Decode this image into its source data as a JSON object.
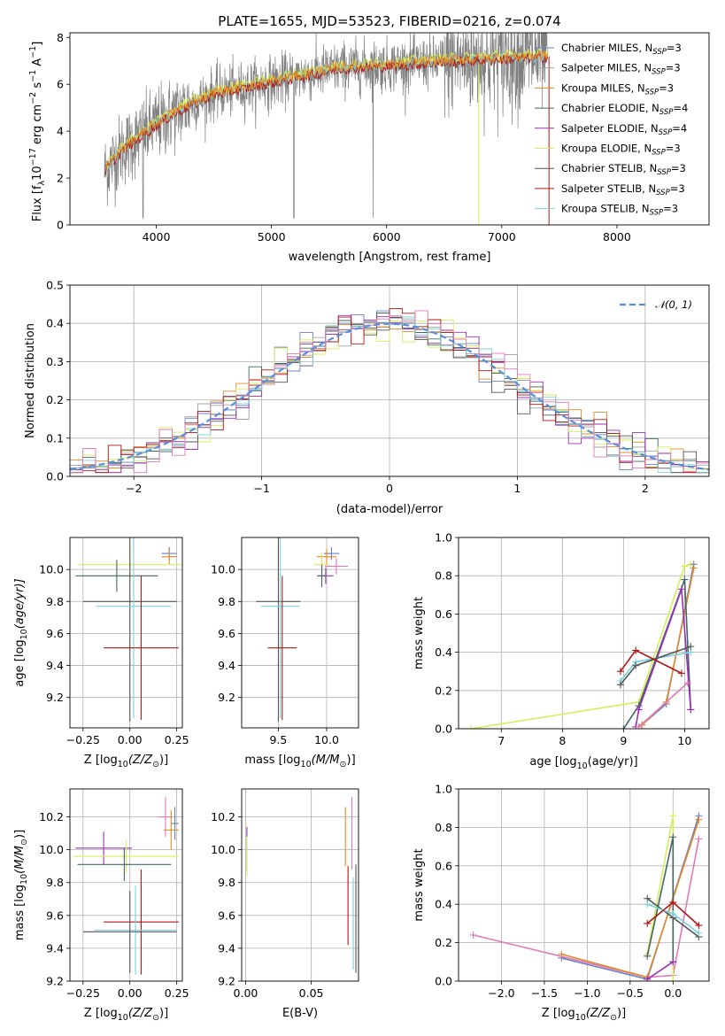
{
  "figure": {
    "title": "PLATE=1655, MJD=53523, FIBERID=0216, z=0.074"
  },
  "colors": {
    "Chabrier MILES": "#6a7fc6",
    "Salpeter MILES": "#a0a0a0",
    "Kroupa MILES": "#e08a2a",
    "Chabrier ELODIE": "#446666",
    "Salpeter ELODIE": "#9b30b5",
    "Kroupa ELODIE": "#d6ee58",
    "Chabrier STELIB": "#555555",
    "Salpeter STELIB": "#b01515",
    "Kroupa STELIB": "#7ad3dd",
    "extra_pink": "#e07ab8",
    "gaussian": "#5b8ddb",
    "data_grey": "#808080"
  },
  "chart_data": [
    {
      "id": "spectrum",
      "type": "line",
      "xlabel": "wavelength [Angstrom, rest frame]",
      "ylabel_main": "Flux [f",
      "ylabel_sub": "λ",
      "ylabel_rest": "10",
      "ylabel_exp": "−17",
      "ylabel_units": " erg cm",
      "ylabel_exp2": "−2",
      "ylabel_units2": " s",
      "ylabel_exp3": "−1",
      "ylabel_units3": " A",
      "ylabel_exp4": "−1",
      "ylabel_end": "]",
      "xlim": [
        3250,
        8800
      ],
      "ylim": [
        0,
        8.2
      ],
      "xticks": [
        "4000",
        "5000",
        "6000",
        "7000",
        "8000"
      ],
      "yticks": [
        "0",
        "2",
        "4",
        "6",
        "8"
      ],
      "grid": false,
      "legend_placement": "right",
      "legend": [
        {
          "label": "Chabrier MILES, N",
          "sub": "SSP",
          "tail": "=3"
        },
        {
          "label": "Salpeter MILES, N",
          "sub": "SSP",
          "tail": "=3"
        },
        {
          "label": "Kroupa MILES, N",
          "sub": "SSP",
          "tail": "=3"
        },
        {
          "label": "Chabrier ELODIE, N",
          "sub": "SSP",
          "tail": "=4"
        },
        {
          "label": "Salpeter ELODIE, N",
          "sub": "SSP",
          "tail": "=4"
        },
        {
          "label": "Kroupa ELODIE, N",
          "sub": "SSP",
          "tail": "=3"
        },
        {
          "label": "Chabrier STELIB, N",
          "sub": "SSP",
          "tail": "=3"
        },
        {
          "label": "Salpeter STELIB, N",
          "sub": "SSP",
          "tail": "=3"
        },
        {
          "label": "Kroupa STELIB, N",
          "sub": "SSP",
          "tail": "=3"
        }
      ],
      "continuum": {
        "x": [
          3550,
          3700,
          3900,
          4000,
          4200,
          4500,
          4800,
          5000,
          5300,
          5600,
          6000,
          6300,
          6600,
          7000,
          7400
        ],
        "y": [
          2.3,
          3.2,
          3.9,
          4.3,
          4.9,
          5.6,
          5.9,
          6.1,
          6.4,
          6.7,
          6.8,
          6.9,
          7.0,
          7.1,
          7.2
        ]
      }
    },
    {
      "id": "residuals",
      "type": "line",
      "xlabel": "(data-model)/error",
      "ylabel": "Normed distribution",
      "xlim": [
        -2.5,
        2.5
      ],
      "ylim": [
        0,
        0.5
      ],
      "xticks": [
        "−2",
        "−1",
        "0",
        "1",
        "2"
      ],
      "yticks": [
        "0.0",
        "0.1",
        "0.2",
        "0.3",
        "0.4",
        "0.5"
      ],
      "grid": true,
      "legend_placement": "top-right",
      "legend_label": "𝒩(0, 1)",
      "series_name": "N(0,1)"
    },
    {
      "id": "age-vs-Z",
      "type": "scatter",
      "xlabel": "Z [log",
      "xlabel_sub": "10",
      "xlabel_rest": "(Z/Z",
      "xlabel_sun": "⊙",
      "xlabel_end": ")]",
      "ylabel": "age  [log",
      "ylabel_sub": "10",
      "ylabel_rest": "(age/yr)]",
      "xlim": [
        -0.32,
        0.28
      ],
      "ylim": [
        9.01,
        10.2
      ],
      "xticks": [
        "−0.25",
        "0.00",
        "0.25"
      ],
      "yticks": [
        "9.2",
        "9.4",
        "9.6",
        "9.8",
        "10.0"
      ],
      "points": [
        {
          "c": "Chabrier MILES",
          "x": 0.21,
          "y": 10.1,
          "xe": 0.04,
          "ye": 0.04
        },
        {
          "c": "Kroupa MILES",
          "x": 0.21,
          "y": 10.08,
          "xe": 0.04,
          "ye": 0.05
        },
        {
          "c": "Kroupa ELODIE",
          "x": 0.0,
          "y": 10.03,
          "xe": 0.28,
          "ye": 0.1
        },
        {
          "c": "Chabrier ELODIE",
          "x": -0.07,
          "y": 9.96,
          "xe": 0.22,
          "ye": 0.1
        },
        {
          "c": "Chabrier STELIB",
          "x": 0.0,
          "y": 9.8,
          "xe": 0.25,
          "ye": 0.75
        },
        {
          "c": "Kroupa STELIB",
          "x": 0.02,
          "y": 9.77,
          "xe": 0.2,
          "ye": 0.7
        },
        {
          "c": "Salpeter STELIB",
          "x": 0.06,
          "y": 9.51,
          "xe": 0.2,
          "ye": 0.45
        }
      ]
    },
    {
      "id": "age-vs-mass",
      "type": "scatter",
      "xlabel": "mass [log",
      "xlabel_sub": "10",
      "xlabel_rest": "(M/M",
      "xlabel_sun": "⊙",
      "xlabel_end": ")]",
      "xlim": [
        9.12,
        10.33
      ],
      "ylim": [
        9.01,
        10.2
      ],
      "xticks": [
        "9.5",
        "10.0"
      ],
      "yticks": [
        "9.2",
        "9.4",
        "9.6",
        "9.8",
        "10.0"
      ],
      "points": [
        {
          "c": "Chabrier MILES",
          "x": 10.05,
          "y": 10.1,
          "xe": 0.08,
          "ye": 0.04
        },
        {
          "c": "Kroupa MILES",
          "x": 10.0,
          "y": 10.08,
          "xe": 0.1,
          "ye": 0.05
        },
        {
          "c": "extra_pink",
          "x": 10.1,
          "y": 10.02,
          "xe": 0.12,
          "ye": 0.05
        },
        {
          "c": "Kroupa ELODIE",
          "x": 9.95,
          "y": 10.03,
          "xe": 0.08,
          "ye": 0.08
        },
        {
          "c": "Salpeter ELODIE",
          "x": 9.99,
          "y": 9.96,
          "xe": 0.08,
          "ye": 0.05
        },
        {
          "c": "Chabrier ELODIE",
          "x": 9.95,
          "y": 9.96,
          "xe": 0.05,
          "ye": 0.07
        },
        {
          "c": "Chabrier STELIB",
          "x": 9.5,
          "y": 9.8,
          "xe": 0.23,
          "ye": 0.75
        },
        {
          "c": "Kroupa STELIB",
          "x": 9.52,
          "y": 9.77,
          "xe": 0.2,
          "ye": 0.7
        },
        {
          "c": "Salpeter STELIB",
          "x": 9.54,
          "y": 9.51,
          "xe": 0.15,
          "ye": 0.45
        }
      ]
    },
    {
      "id": "massweight-vs-age",
      "type": "line",
      "xlabel": "age  [log",
      "xlabel_sub": "10",
      "xlabel_rest": "(age/yr)]",
      "ylabel": "mass weight",
      "xlim": [
        6.3,
        10.4
      ],
      "ylim": [
        0,
        1.0
      ],
      "xticks": [
        "7",
        "8",
        "9",
        "10"
      ],
      "yticks": [
        "0.0",
        "0.2",
        "0.4",
        "0.6",
        "0.8",
        "1.0"
      ],
      "grid": true,
      "series": [
        {
          "c": "Kroupa ELODIE",
          "x": [
            6.5,
            9.25,
            10.0,
            10.1
          ],
          "y": [
            0.0,
            0.14,
            0.85,
            0.86
          ]
        },
        {
          "c": "Chabrier MILES",
          "x": [
            9.3,
            9.7,
            10.15
          ],
          "y": [
            0.02,
            0.13,
            0.86
          ]
        },
        {
          "c": "Kroupa MILES",
          "x": [
            9.3,
            9.7,
            10.15
          ],
          "y": [
            0.02,
            0.14,
            0.84
          ]
        },
        {
          "c": "Chabrier ELODIE",
          "x": [
            9.0,
            9.25,
            10.0,
            10.1
          ],
          "y": [
            0.0,
            0.12,
            0.78,
            0.1
          ]
        },
        {
          "c": "Salpeter ELODIE",
          "x": [
            9.2,
            9.25,
            9.95,
            10.1
          ],
          "y": [
            0.01,
            0.1,
            0.73,
            0.1
          ]
        },
        {
          "c": "Kroupa STELIB",
          "x": [
            8.95,
            9.2,
            10.1
          ],
          "y": [
            0.25,
            0.35,
            0.4
          ]
        },
        {
          "c": "Chabrier STELIB",
          "x": [
            8.95,
            9.2,
            10.1
          ],
          "y": [
            0.23,
            0.33,
            0.43
          ]
        },
        {
          "c": "Salpeter STELIB",
          "x": [
            8.95,
            9.2,
            9.95
          ],
          "y": [
            0.3,
            0.41,
            0.29
          ]
        },
        {
          "c": "extra_pink",
          "x": [
            9.25,
            10.05
          ],
          "y": [
            0.01,
            0.24
          ]
        }
      ]
    },
    {
      "id": "mass-vs-Z",
      "type": "scatter",
      "xlabel": "Z [log",
      "xlabel_sub": "10",
      "xlabel_rest": "(Z/Z",
      "xlabel_sun": "⊙",
      "xlabel_end": ")]",
      "ylabel": "mass [log",
      "ylabel_sub": "10",
      "ylabel_rest": "(M/M",
      "ylabel_sun": "⊙",
      "ylabel_end": ")]",
      "xlim": [
        -0.32,
        0.28
      ],
      "ylim": [
        9.2,
        10.37
      ],
      "xticks": [
        "−0.25",
        "0.00",
        "0.25"
      ],
      "yticks": [
        "9.2",
        "9.4",
        "9.6",
        "9.8",
        "10.0",
        "10.2"
      ],
      "points": [
        {
          "c": "Chabrier MILES",
          "x": 0.24,
          "y": 10.16,
          "xe": 0.02,
          "ye": 0.1
        },
        {
          "c": "extra_pink",
          "x": 0.19,
          "y": 10.2,
          "xe": 0.04,
          "ye": 0.12
        },
        {
          "c": "Kroupa MILES",
          "x": 0.22,
          "y": 10.12,
          "xe": 0.04,
          "ye": 0.12
        },
        {
          "c": "Salpeter ELODIE",
          "x": -0.14,
          "y": 10.01,
          "xe": 0.15,
          "ye": 0.1
        },
        {
          "c": "Kroupa ELODIE",
          "x": -0.02,
          "y": 9.96,
          "xe": 0.28,
          "ye": 0.1
        },
        {
          "c": "Chabrier ELODIE",
          "x": -0.03,
          "y": 9.91,
          "xe": 0.25,
          "ye": 0.1
        },
        {
          "c": "Salpeter STELIB",
          "x": 0.06,
          "y": 9.56,
          "xe": 0.2,
          "ye": 0.32
        },
        {
          "c": "Kroupa STELIB",
          "x": 0.03,
          "y": 9.51,
          "xe": 0.22,
          "ye": 0.27
        },
        {
          "c": "Chabrier STELIB",
          "x": 0.0,
          "y": 9.5,
          "xe": 0.25,
          "ye": 0.25
        }
      ]
    },
    {
      "id": "mass-vs-EBV",
      "type": "scatter",
      "xlabel": "E(B-V)",
      "xlim": [
        -0.003,
        0.086
      ],
      "ylim": [
        9.2,
        10.37
      ],
      "xticks": [
        "0.00",
        "0.05"
      ],
      "yticks": [
        "9.2",
        "9.4",
        "9.6",
        "9.8",
        "10.0",
        "10.2"
      ],
      "points": [
        {
          "c": "Salpeter ELODIE",
          "x": 0.001,
          "y": 10.01,
          "xe": 0,
          "ye": 0.13
        },
        {
          "c": "Kroupa ELODIE",
          "x": 0.001,
          "y": 9.96,
          "xe": 0,
          "ye": 0.12
        },
        {
          "c": "Kroupa MILES",
          "x": 0.076,
          "y": 10.08,
          "xe": 0,
          "ye": 0.18
        },
        {
          "c": "extra_pink",
          "x": 0.081,
          "y": 10.1,
          "xe": 0,
          "ye": 0.22
        },
        {
          "c": "Salpeter STELIB",
          "x": 0.078,
          "y": 9.66,
          "xe": 0,
          "ye": 0.24
        },
        {
          "c": "Kroupa STELIB",
          "x": 0.082,
          "y": 9.55,
          "xe": 0,
          "ye": 0.28
        },
        {
          "c": "Chabrier STELIB",
          "x": 0.084,
          "y": 9.58,
          "xe": 0,
          "ye": 0.33
        }
      ]
    },
    {
      "id": "massweight-vs-Z",
      "type": "line",
      "xlabel": "Z [log",
      "xlabel_sub": "10",
      "xlabel_rest": "(Z/Z",
      "xlabel_sun": "⊙",
      "xlabel_end": ")]",
      "ylabel": "mass weight",
      "xlim": [
        -2.5,
        0.42
      ],
      "ylim": [
        0,
        1.0
      ],
      "xticks": [
        "−2.0",
        "−1.5",
        "−1.0",
        "−0.5",
        "0.0"
      ],
      "yticks": [
        "0.0",
        "0.2",
        "0.4",
        "0.6",
        "0.8",
        "1.0"
      ],
      "grid": true,
      "series": [
        {
          "c": "extra_pink",
          "x": [
            -2.33,
            -0.3,
            0.0,
            0.3
          ],
          "y": [
            0.24,
            0.02,
            0.03,
            0.74
          ]
        },
        {
          "c": "Chabrier MILES",
          "x": [
            -1.3,
            -0.3,
            0.3
          ],
          "y": [
            0.12,
            0.01,
            0.86
          ]
        },
        {
          "c": "Kroupa MILES",
          "x": [
            -1.3,
            -0.3,
            0.3
          ],
          "y": [
            0.14,
            0.02,
            0.84
          ]
        },
        {
          "c": "Kroupa ELODIE",
          "x": [
            -0.3,
            0.0,
            0.0
          ],
          "y": [
            0.14,
            0.86,
            0.0
          ]
        },
        {
          "c": "Chabrier ELODIE",
          "x": [
            -0.3,
            0.0,
            0.0
          ],
          "y": [
            0.13,
            0.75,
            0.1
          ]
        },
        {
          "c": "Chabrier STELIB",
          "x": [
            -0.3,
            0.0,
            0.3
          ],
          "y": [
            0.43,
            0.33,
            0.23
          ]
        },
        {
          "c": "Kroupa STELIB",
          "x": [
            -0.3,
            0.0,
            0.3
          ],
          "y": [
            0.4,
            0.35,
            0.25
          ]
        },
        {
          "c": "Salpeter STELIB",
          "x": [
            -0.3,
            0.0,
            0.3
          ],
          "y": [
            0.3,
            0.41,
            0.29
          ]
        },
        {
          "c": "Salpeter ELODIE",
          "x": [
            -0.3,
            0.0
          ],
          "y": [
            0.01,
            0.1
          ]
        }
      ]
    }
  ]
}
